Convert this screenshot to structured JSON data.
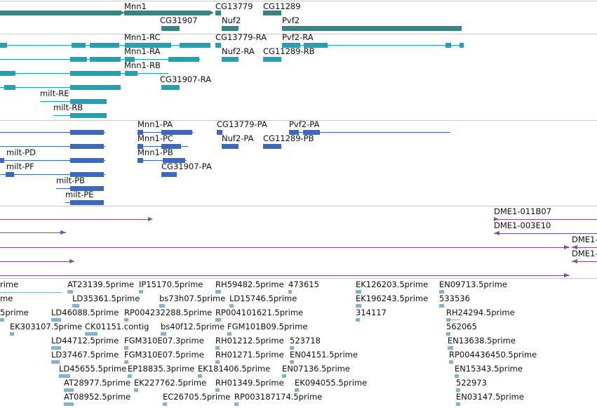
{
  "colors": {
    "gene": "#2b8a85",
    "transcript_cyan": "#1fa3b6",
    "transcript_blue": "#3569cc",
    "clone": "#7a4fb0",
    "est": "#7eb3dc",
    "separator": "#c8c8c8"
  },
  "tracks": {
    "genes": [
      {
        "label": "Mnn1"
      },
      {
        "label": "CG31907"
      },
      {
        "label": "CG13779"
      },
      {
        "label": "Nuf2"
      },
      {
        "label": "CG11289"
      },
      {
        "label": "Pvf2"
      }
    ],
    "transcripts_a": [
      {
        "label": "Mnn1-RC"
      },
      {
        "label": "CG13779-RA"
      },
      {
        "label": "Pvf2-RA"
      },
      {
        "label": "Mnn1-RA"
      },
      {
        "label": "Nuf2-RA"
      },
      {
        "label": "CG11289-RB"
      },
      {
        "label": "Mnn1-RB"
      },
      {
        "label": "CG31907-RA"
      },
      {
        "label": "milt-RE"
      },
      {
        "label": "milt-RB"
      }
    ],
    "transcripts_b": [
      {
        "label": "Mnn1-PA"
      },
      {
        "label": "CG13779-PA"
      },
      {
        "label": "Pvf2-PA"
      },
      {
        "label": "Mnn1-PC"
      },
      {
        "label": "Nuf2-PA"
      },
      {
        "label": "CG11289-PB"
      },
      {
        "label": "milt-PD"
      },
      {
        "label": "Mnn1-PB"
      },
      {
        "label": "milt-PF"
      },
      {
        "label": "CG31907-PA"
      },
      {
        "label": "milt-PB"
      },
      {
        "label": "milt-PE"
      }
    ],
    "clones": [
      {
        "label": "DME1-011B07"
      },
      {
        "label": "DME1-003E10"
      },
      {
        "label": "DME1-"
      },
      {
        "label": "DME1-"
      }
    ],
    "ests": [
      {
        "label": "rime"
      },
      {
        "label": "AT23139.5prime"
      },
      {
        "label": "IP15170.5prime"
      },
      {
        "label": "RH59482.5prime"
      },
      {
        "label": "473615"
      },
      {
        "label": "EK126203.5prime"
      },
      {
        "label": "EN09713.5prime"
      },
      {
        "label": "me"
      },
      {
        "label": "LD35361.5prime"
      },
      {
        "label": "bs73h07.5prime"
      },
      {
        "label": "LD15746.5prime"
      },
      {
        "label": "EK196243.5prime"
      },
      {
        "label": "533536"
      },
      {
        "label": "5prime"
      },
      {
        "label": "LD46088.5prime"
      },
      {
        "label": "RP004232288.5prime"
      },
      {
        "label": "RP004101621.5prime"
      },
      {
        "label": "314117"
      },
      {
        "label": "RH24294.5prime"
      },
      {
        "label": "EK303107.5prime"
      },
      {
        "label": "CK01151.contig"
      },
      {
        "label": "bs40f12.5prime"
      },
      {
        "label": "FGM101B09.5prime"
      },
      {
        "label": "562065"
      },
      {
        "label": "LD44712.5prime"
      },
      {
        "label": "FGM310E07.3prime"
      },
      {
        "label": "RH01212.5prime"
      },
      {
        "label": "523718"
      },
      {
        "label": "EN13638.5prime"
      },
      {
        "label": "LD37467.5prime"
      },
      {
        "label": "FGM310E07.5prime"
      },
      {
        "label": "RH01271.5prime"
      },
      {
        "label": "EN04151.5prime"
      },
      {
        "label": "RP004436450.5prime"
      },
      {
        "label": "LD45655.5prime"
      },
      {
        "label": "EP18835.3prime"
      },
      {
        "label": "EK181406.5prime"
      },
      {
        "label": "EN07136.5prime"
      },
      {
        "label": "EN15343.5prime"
      },
      {
        "label": "AT28977.5prime"
      },
      {
        "label": "EK227762.5prime"
      },
      {
        "label": "RH01349.5prime"
      },
      {
        "label": "EK094055.5prime"
      },
      {
        "label": "522973"
      },
      {
        "label": "AT08952.5prime"
      },
      {
        "label": "EC26705.5prime"
      },
      {
        "label": "RP003187174.5prime"
      },
      {
        "label": "EN03147.5prime"
      }
    ]
  }
}
